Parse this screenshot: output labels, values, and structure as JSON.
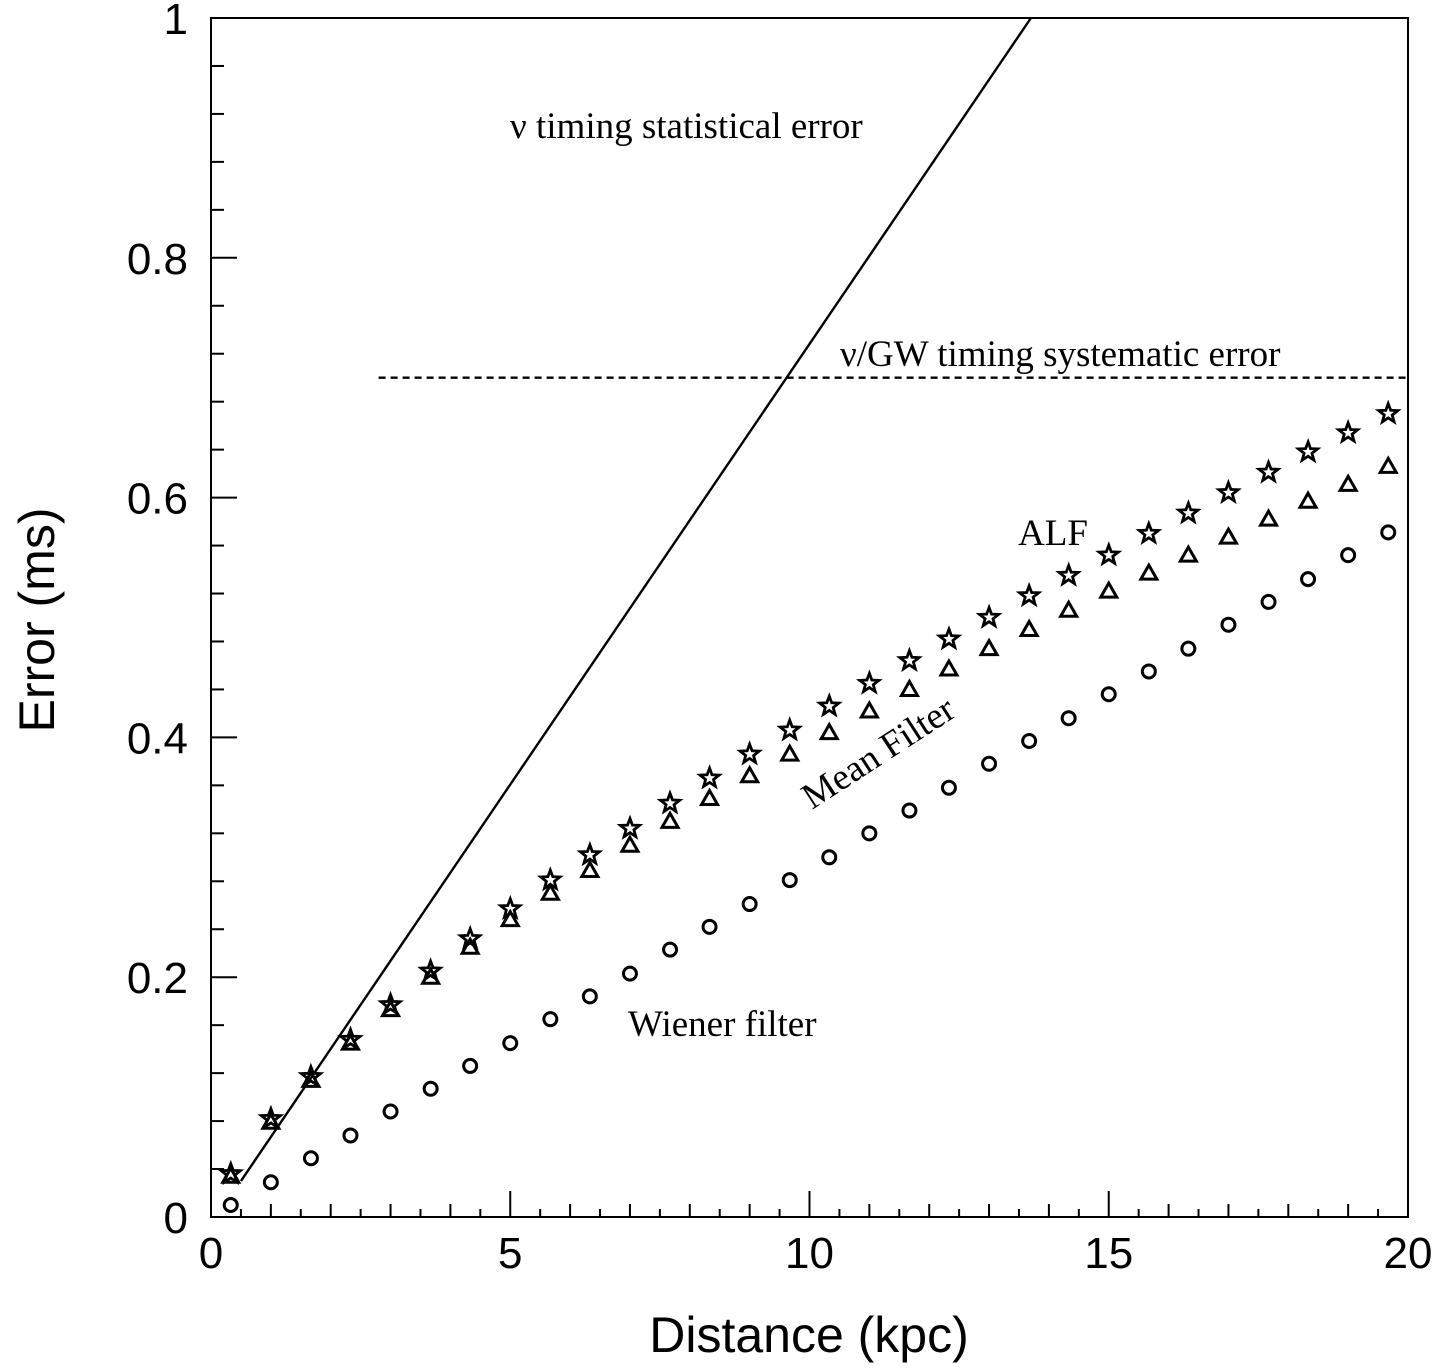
{
  "chart_data": {
    "type": "scatter",
    "xlabel": "Distance (kpc)",
    "ylabel": "Error (ms)",
    "xlim": [
      0,
      20
    ],
    "ylim": [
      0,
      1
    ],
    "x_ticks": [
      "0",
      "5",
      "10",
      "15",
      "20"
    ],
    "y_ticks": [
      "0",
      "0.2",
      "0.4",
      "0.6",
      "0.8",
      "1"
    ],
    "grid": false,
    "x": [
      0.33,
      1.0,
      1.67,
      2.33,
      3.0,
      3.67,
      4.33,
      5.0,
      5.67,
      6.33,
      7.0,
      7.67,
      8.33,
      9.0,
      9.67,
      10.33,
      11.0,
      11.67,
      12.33,
      13.0,
      13.67,
      14.33,
      15.0,
      15.67,
      16.33,
      17.0,
      17.67,
      18.33,
      19.0,
      19.67
    ],
    "series": [
      {
        "name": "ALF",
        "marker": "star",
        "values": [
          0.036,
          0.082,
          0.117,
          0.148,
          0.177,
          0.205,
          0.232,
          0.257,
          0.281,
          0.302,
          0.324,
          0.345,
          0.366,
          0.386,
          0.406,
          0.426,
          0.445,
          0.464,
          0.482,
          0.5,
          0.518,
          0.535,
          0.552,
          0.57,
          0.587,
          0.604,
          0.621,
          0.638,
          0.654,
          0.67
        ]
      },
      {
        "name": "Mean Filter",
        "marker": "triangle",
        "values": [
          0.034,
          0.079,
          0.114,
          0.145,
          0.173,
          0.2,
          0.225,
          0.248,
          0.27,
          0.289,
          0.31,
          0.33,
          0.349,
          0.368,
          0.386,
          0.404,
          0.422,
          0.44,
          0.457,
          0.474,
          0.49,
          0.506,
          0.522,
          0.537,
          0.552,
          0.567,
          0.582,
          0.597,
          0.611,
          0.626
        ]
      },
      {
        "name": "Wiener filter",
        "marker": "circle",
        "values": [
          0.01,
          0.029,
          0.049,
          0.068,
          0.088,
          0.107,
          0.126,
          0.145,
          0.165,
          0.184,
          0.203,
          0.223,
          0.242,
          0.261,
          0.281,
          0.3,
          0.32,
          0.339,
          0.358,
          0.378,
          0.397,
          0.416,
          0.436,
          0.455,
          0.474,
          0.494,
          0.513,
          0.532,
          0.552,
          0.571
        ]
      }
    ],
    "lines": [
      {
        "name": "statistical",
        "style": "solid",
        "points": [
          [
            0.5,
            0.03
          ],
          [
            13.7,
            1.0
          ]
        ]
      },
      {
        "name": "systematic",
        "style": "dashed",
        "points": [
          [
            2.8,
            0.7
          ],
          [
            20.0,
            0.7
          ]
        ]
      }
    ],
    "annotations": {
      "statistical": "ν timing statistical error",
      "systematic": "ν/GW timing systematic error",
      "alf": "ALF",
      "mean": "Mean Filter",
      "wiener": "Wiener filter"
    }
  }
}
